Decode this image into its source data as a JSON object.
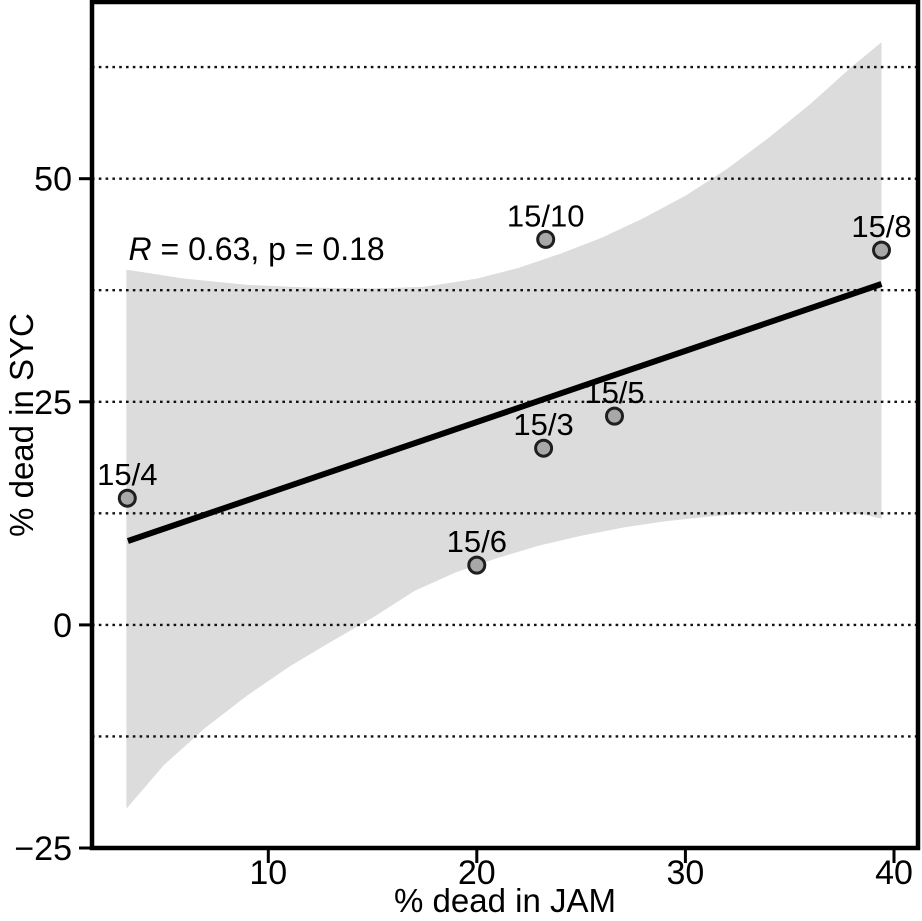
{
  "chart_data": {
    "type": "scatter",
    "title": "",
    "xlabel": "% dead in JAM",
    "ylabel": "% dead in SYC",
    "xlim": [
      1.55,
      41.15
    ],
    "ylim": [
      -25,
      69.8
    ],
    "grid": "horizontal-dotted",
    "x_ticks": [
      {
        "value": 10,
        "label": "10"
      },
      {
        "value": 20,
        "label": "20"
      },
      {
        "value": 30,
        "label": "30"
      },
      {
        "value": 40,
        "label": "40"
      }
    ],
    "y_ticks": [
      {
        "value": -25,
        "label": "−25"
      },
      {
        "value": 0,
        "label": "0"
      },
      {
        "value": 25,
        "label": "25"
      },
      {
        "value": 50,
        "label": "50"
      }
    ],
    "gridlines_y": [
      62.5,
      50,
      37.5,
      25,
      12.5,
      0,
      -12.5
    ],
    "annotation": {
      "r_italic": "R",
      "text": " = 0.63, p = 0.18",
      "x": 3.3,
      "y": 40.9
    },
    "points": [
      {
        "label": "15/4",
        "x": 3.24,
        "y": 14.2
      },
      {
        "label": "15/6",
        "x": 20.0,
        "y": 6.7
      },
      {
        "label": "15/3",
        "x": 23.2,
        "y": 19.8
      },
      {
        "label": "15/5",
        "x": 26.6,
        "y": 23.4
      },
      {
        "label": "15/10",
        "x": 23.3,
        "y": 43.2
      },
      {
        "label": "15/8",
        "x": 39.4,
        "y": 42.0
      }
    ],
    "regression_line": {
      "x1": 3.27,
      "y1": 9.4,
      "x2": 39.4,
      "y2": 38.2
    },
    "confidence_band": {
      "upper": [
        [
          3.2,
          39.8
        ],
        [
          6,
          38.8
        ],
        [
          9,
          38.1
        ],
        [
          12,
          37.8
        ],
        [
          15,
          37.7
        ],
        [
          17.5,
          37.9
        ],
        [
          20,
          38.8
        ],
        [
          22,
          40.0
        ],
        [
          24,
          41.6
        ],
        [
          26,
          43.4
        ],
        [
          28,
          45.6
        ],
        [
          30,
          48.1
        ],
        [
          32,
          51.1
        ],
        [
          34,
          54.6
        ],
        [
          36,
          58.4
        ],
        [
          38,
          62.6
        ],
        [
          39.4,
          65.3
        ]
      ],
      "lower": [
        [
          3.2,
          -20.6
        ],
        [
          5,
          -15.7
        ],
        [
          7,
          -11.5
        ],
        [
          9,
          -7.9
        ],
        [
          11,
          -4.7
        ],
        [
          13,
          -1.9
        ],
        [
          15,
          0.8
        ],
        [
          17,
          3.8
        ],
        [
          19,
          5.9
        ],
        [
          21,
          7.5
        ],
        [
          23,
          8.9
        ],
        [
          25,
          10.0
        ],
        [
          27,
          10.9
        ],
        [
          29,
          11.6
        ],
        [
          31,
          12.1
        ],
        [
          33,
          12.5
        ],
        [
          35,
          12.7
        ],
        [
          37,
          12.7
        ],
        [
          38.5,
          12.4
        ],
        [
          39.4,
          11.9
        ]
      ]
    },
    "colors": {
      "band": "#dcdcdc",
      "regression_line": "#000000",
      "marker_fill": "#a8a8a8",
      "marker_stroke": "#1f1f1f",
      "grid": "#111111",
      "border": "#000000",
      "text": "#000000",
      "background": "#ffffff"
    }
  }
}
